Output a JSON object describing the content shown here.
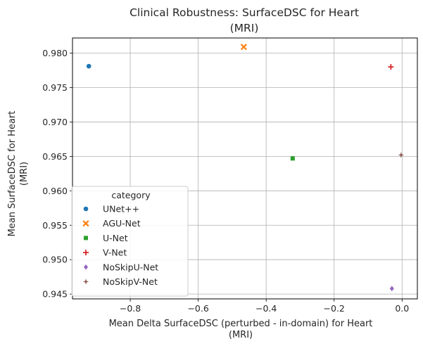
{
  "chart_data": {
    "type": "scatter",
    "title_line1": "Clinical Robustness: SurfaceDSC for Heart",
    "title_line2": "(MRI)",
    "xlabel_line1": "Mean Delta SurfaceDSC (perturbed - in-domain) for Heart",
    "xlabel_line2": "(MRI)",
    "ylabel_line1": "Mean SurfaceDSC for Heart",
    "ylabel_line2": "(MRI)",
    "xlim": [
      -0.97,
      0.045
    ],
    "ylim": [
      0.9443,
      0.9822
    ],
    "xticks": [
      -0.8,
      -0.6,
      -0.4,
      -0.2,
      0.0
    ],
    "xtick_labels": [
      "−0.8",
      "−0.6",
      "−0.4",
      "−0.2",
      "0.0"
    ],
    "yticks": [
      0.945,
      0.95,
      0.955,
      0.96,
      0.965,
      0.97,
      0.975,
      0.98
    ],
    "ytick_labels": [
      "0.945",
      "0.950",
      "0.955",
      "0.960",
      "0.965",
      "0.970",
      "0.975",
      "0.980"
    ],
    "grid": true,
    "legend": {
      "title": "category",
      "placement": "lower-left"
    },
    "series": [
      {
        "name": "UNet++",
        "marker": "circle",
        "color": "#1f77b4",
        "x": -0.922,
        "y": 0.9781
      },
      {
        "name": "AGU-Net",
        "marker": "x",
        "color": "#ff7f0e",
        "x": -0.466,
        "y": 0.9809
      },
      {
        "name": "U-Net",
        "marker": "square",
        "color": "#2ca02c",
        "x": -0.322,
        "y": 0.9647
      },
      {
        "name": "V-Net",
        "marker": "plus",
        "color": "#d62728",
        "x": -0.033,
        "y": 0.978
      },
      {
        "name": "NoSkipU-Net",
        "marker": "diamond",
        "color": "#9467bd",
        "x": -0.03,
        "y": 0.9458
      },
      {
        "name": "NoSkipV-Net",
        "marker": "star",
        "color": "#8c564b",
        "x": -0.003,
        "y": 0.9652
      }
    ]
  }
}
